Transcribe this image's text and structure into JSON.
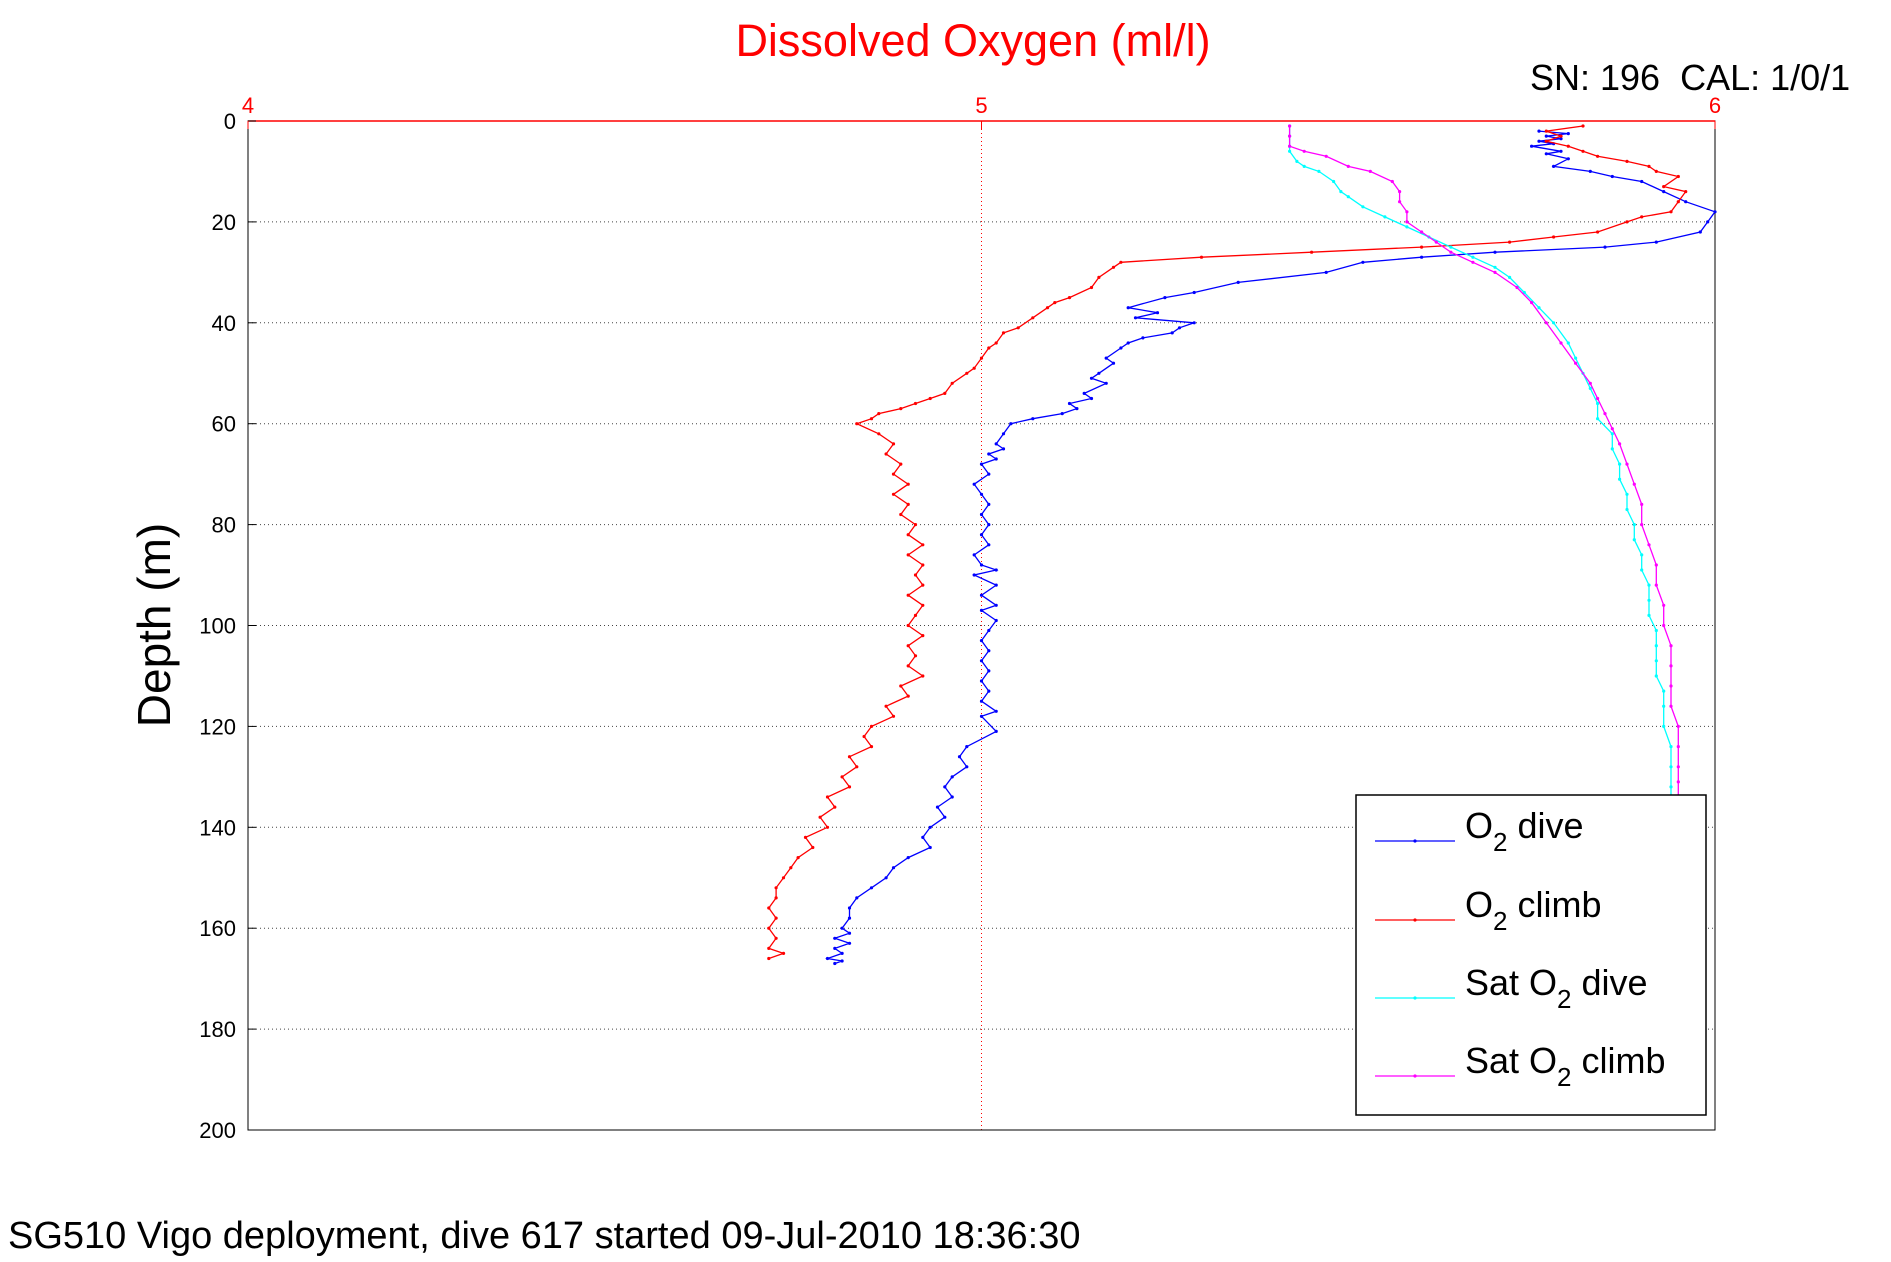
{
  "figure": {
    "serial_label": "SN: 196  CAL: 1/0/1",
    "caption": "SG510 Vigo deployment, dive 617 started 09-Jul-2010 18:36:30"
  },
  "chart_data": {
    "type": "line",
    "title": "Dissolved Oxygen (ml/l)",
    "title_color": "#ff0000",
    "xlabel": "",
    "ylabel": "Depth (m)",
    "xlim": [
      4,
      6
    ],
    "ylim": [
      0,
      200
    ],
    "y_reversed": true,
    "x_axis_position": "top",
    "x_ticks": [
      4,
      5,
      6
    ],
    "x_tick_color": "#ff0000",
    "y_ticks": [
      0,
      20,
      40,
      60,
      80,
      100,
      120,
      140,
      160,
      180,
      200
    ],
    "grid": true,
    "legend_position": "bottom-right",
    "series": [
      {
        "name": "O2 dive",
        "legend_base": "O",
        "legend_sub": "2",
        "legend_suffix": " dive",
        "color": "#0000ff",
        "points": [
          [
            5.76,
            2
          ],
          [
            5.8,
            2.5
          ],
          [
            5.77,
            3
          ],
          [
            5.79,
            3.5
          ],
          [
            5.76,
            4
          ],
          [
            5.78,
            4.5
          ],
          [
            5.75,
            5
          ],
          [
            5.79,
            6
          ],
          [
            5.77,
            6.5
          ],
          [
            5.8,
            7.5
          ],
          [
            5.78,
            9
          ],
          [
            5.83,
            10
          ],
          [
            5.86,
            11
          ],
          [
            5.9,
            12
          ],
          [
            5.93,
            14
          ],
          [
            5.96,
            16
          ],
          [
            6.0,
            18
          ],
          [
            5.99,
            20
          ],
          [
            5.98,
            22
          ],
          [
            5.92,
            24
          ],
          [
            5.85,
            25
          ],
          [
            5.7,
            26
          ],
          [
            5.6,
            27
          ],
          [
            5.52,
            28
          ],
          [
            5.47,
            30
          ],
          [
            5.35,
            32
          ],
          [
            5.29,
            34
          ],
          [
            5.25,
            35
          ],
          [
            5.2,
            37
          ],
          [
            5.24,
            38
          ],
          [
            5.21,
            39
          ],
          [
            5.29,
            40
          ],
          [
            5.27,
            41
          ],
          [
            5.26,
            42
          ],
          [
            5.22,
            43
          ],
          [
            5.2,
            44
          ],
          [
            5.19,
            45
          ],
          [
            5.17,
            47
          ],
          [
            5.18,
            48
          ],
          [
            5.16,
            50
          ],
          [
            5.15,
            51
          ],
          [
            5.17,
            52
          ],
          [
            5.14,
            54
          ],
          [
            5.15,
            55
          ],
          [
            5.12,
            56
          ],
          [
            5.13,
            57
          ],
          [
            5.11,
            58
          ],
          [
            5.07,
            59
          ],
          [
            5.04,
            60
          ],
          [
            5.03,
            62
          ],
          [
            5.02,
            64
          ],
          [
            5.03,
            65
          ],
          [
            5.01,
            66
          ],
          [
            5.02,
            67
          ],
          [
            5.0,
            68
          ],
          [
            5.01,
            70
          ],
          [
            4.99,
            72
          ],
          [
            5.0,
            74
          ],
          [
            5.01,
            76
          ],
          [
            5.0,
            78
          ],
          [
            5.01,
            80
          ],
          [
            5.0,
            82
          ],
          [
            5.01,
            84
          ],
          [
            4.99,
            86
          ],
          [
            5.0,
            88
          ],
          [
            5.02,
            89
          ],
          [
            4.99,
            90
          ],
          [
            5.02,
            92
          ],
          [
            5.0,
            94
          ],
          [
            5.02,
            96
          ],
          [
            5.0,
            97
          ],
          [
            5.02,
            99
          ],
          [
            5.01,
            101
          ],
          [
            5.0,
            103
          ],
          [
            5.01,
            105
          ],
          [
            5.0,
            107
          ],
          [
            5.01,
            109
          ],
          [
            5.0,
            111
          ],
          [
            5.01,
            113
          ],
          [
            5.0,
            115
          ],
          [
            5.02,
            117
          ],
          [
            5.0,
            118
          ],
          [
            5.02,
            121
          ],
          [
            4.98,
            124
          ],
          [
            4.97,
            126
          ],
          [
            4.98,
            128
          ],
          [
            4.96,
            130
          ],
          [
            4.95,
            132
          ],
          [
            4.96,
            134
          ],
          [
            4.94,
            136
          ],
          [
            4.95,
            138
          ],
          [
            4.93,
            140
          ],
          [
            4.92,
            142
          ],
          [
            4.93,
            144
          ],
          [
            4.9,
            146
          ],
          [
            4.88,
            148
          ],
          [
            4.87,
            150
          ],
          [
            4.85,
            152
          ],
          [
            4.83,
            154
          ],
          [
            4.82,
            156
          ],
          [
            4.82,
            158
          ],
          [
            4.81,
            160
          ],
          [
            4.82,
            161
          ],
          [
            4.8,
            162
          ],
          [
            4.82,
            163
          ],
          [
            4.8,
            164
          ],
          [
            4.81,
            165
          ],
          [
            4.79,
            166
          ],
          [
            4.81,
            166.5
          ],
          [
            4.8,
            167
          ]
        ]
      },
      {
        "name": "O2 climb",
        "legend_base": "O",
        "legend_sub": "2",
        "legend_suffix": " climb",
        "color": "#ff0000",
        "points": [
          [
            5.82,
            1
          ],
          [
            5.77,
            2
          ],
          [
            5.79,
            3
          ],
          [
            5.77,
            4
          ],
          [
            5.8,
            5
          ],
          [
            5.82,
            6
          ],
          [
            5.84,
            7
          ],
          [
            5.88,
            8
          ],
          [
            5.91,
            9
          ],
          [
            5.92,
            10
          ],
          [
            5.95,
            11
          ],
          [
            5.93,
            13
          ],
          [
            5.96,
            14
          ],
          [
            5.95,
            16
          ],
          [
            5.94,
            18
          ],
          [
            5.9,
            19
          ],
          [
            5.88,
            20
          ],
          [
            5.84,
            22
          ],
          [
            5.78,
            23
          ],
          [
            5.72,
            24
          ],
          [
            5.6,
            25
          ],
          [
            5.45,
            26
          ],
          [
            5.3,
            27
          ],
          [
            5.19,
            28
          ],
          [
            5.18,
            29
          ],
          [
            5.16,
            31
          ],
          [
            5.15,
            33
          ],
          [
            5.12,
            35
          ],
          [
            5.1,
            36
          ],
          [
            5.09,
            37
          ],
          [
            5.07,
            39
          ],
          [
            5.05,
            41
          ],
          [
            5.03,
            42
          ],
          [
            5.02,
            44
          ],
          [
            5.01,
            45
          ],
          [
            5.0,
            47
          ],
          [
            4.99,
            49
          ],
          [
            4.98,
            50
          ],
          [
            4.96,
            52
          ],
          [
            4.95,
            54
          ],
          [
            4.93,
            55
          ],
          [
            4.91,
            56
          ],
          [
            4.89,
            57
          ],
          [
            4.86,
            58
          ],
          [
            4.85,
            59
          ],
          [
            4.83,
            60
          ],
          [
            4.86,
            62
          ],
          [
            4.88,
            64
          ],
          [
            4.87,
            66
          ],
          [
            4.89,
            68
          ],
          [
            4.88,
            70
          ],
          [
            4.9,
            72
          ],
          [
            4.88,
            74
          ],
          [
            4.9,
            76
          ],
          [
            4.89,
            78
          ],
          [
            4.91,
            80
          ],
          [
            4.9,
            82
          ],
          [
            4.92,
            84
          ],
          [
            4.9,
            86
          ],
          [
            4.92,
            88
          ],
          [
            4.91,
            90
          ],
          [
            4.92,
            92
          ],
          [
            4.9,
            94
          ],
          [
            4.92,
            96
          ],
          [
            4.91,
            98
          ],
          [
            4.9,
            100
          ],
          [
            4.92,
            102
          ],
          [
            4.9,
            104
          ],
          [
            4.91,
            106
          ],
          [
            4.9,
            108
          ],
          [
            4.92,
            110
          ],
          [
            4.89,
            112
          ],
          [
            4.9,
            114
          ],
          [
            4.87,
            116
          ],
          [
            4.88,
            118
          ],
          [
            4.85,
            120
          ],
          [
            4.84,
            122
          ],
          [
            4.85,
            124
          ],
          [
            4.82,
            126
          ],
          [
            4.83,
            128
          ],
          [
            4.81,
            130
          ],
          [
            4.82,
            132
          ],
          [
            4.79,
            134
          ],
          [
            4.8,
            136
          ],
          [
            4.78,
            138
          ],
          [
            4.79,
            140
          ],
          [
            4.76,
            142
          ],
          [
            4.77,
            144
          ],
          [
            4.75,
            146
          ],
          [
            4.74,
            148
          ],
          [
            4.73,
            150
          ],
          [
            4.72,
            152
          ],
          [
            4.72,
            154
          ],
          [
            4.71,
            156
          ],
          [
            4.72,
            158
          ],
          [
            4.71,
            160
          ],
          [
            4.72,
            162
          ],
          [
            4.71,
            164
          ],
          [
            4.73,
            165
          ],
          [
            4.71,
            166
          ]
        ]
      },
      {
        "name": "Sat O2 dive",
        "legend_base": "Sat O",
        "legend_sub": "2",
        "legend_suffix": " dive",
        "color": "#00ffff",
        "points": [
          [
            5.42,
            1
          ],
          [
            5.42,
            3
          ],
          [
            5.42,
            5
          ],
          [
            5.42,
            6
          ],
          [
            5.43,
            8
          ],
          [
            5.44,
            9
          ],
          [
            5.46,
            10
          ],
          [
            5.48,
            12
          ],
          [
            5.49,
            14
          ],
          [
            5.5,
            15
          ],
          [
            5.52,
            17
          ],
          [
            5.55,
            19
          ],
          [
            5.58,
            21
          ],
          [
            5.61,
            23
          ],
          [
            5.64,
            25
          ],
          [
            5.67,
            27
          ],
          [
            5.7,
            29
          ],
          [
            5.72,
            31
          ],
          [
            5.74,
            34
          ],
          [
            5.76,
            37
          ],
          [
            5.78,
            40
          ],
          [
            5.8,
            44
          ],
          [
            5.81,
            47
          ],
          [
            5.82,
            50
          ],
          [
            5.83,
            53
          ],
          [
            5.84,
            56
          ],
          [
            5.84,
            59
          ],
          [
            5.86,
            62
          ],
          [
            5.86,
            65
          ],
          [
            5.87,
            68
          ],
          [
            5.87,
            71
          ],
          [
            5.88,
            74
          ],
          [
            5.88,
            77
          ],
          [
            5.89,
            80
          ],
          [
            5.89,
            83
          ],
          [
            5.9,
            86
          ],
          [
            5.9,
            89
          ],
          [
            5.91,
            92
          ],
          [
            5.91,
            95
          ],
          [
            5.91,
            98
          ],
          [
            5.92,
            101
          ],
          [
            5.92,
            104
          ],
          [
            5.92,
            107
          ],
          [
            5.92,
            110
          ],
          [
            5.93,
            113
          ],
          [
            5.93,
            116
          ],
          [
            5.93,
            120
          ],
          [
            5.94,
            124
          ],
          [
            5.94,
            128
          ],
          [
            5.94,
            132
          ],
          [
            5.94,
            134
          ]
        ]
      },
      {
        "name": "Sat O2 climb",
        "legend_base": "Sat O",
        "legend_sub": "2",
        "legend_suffix": " climb",
        "color": "#ff00ff",
        "points": [
          [
            5.42,
            1
          ],
          [
            5.42,
            3
          ],
          [
            5.42,
            5
          ],
          [
            5.44,
            6
          ],
          [
            5.47,
            7
          ],
          [
            5.5,
            9
          ],
          [
            5.53,
            10
          ],
          [
            5.56,
            12
          ],
          [
            5.57,
            14
          ],
          [
            5.57,
            16
          ],
          [
            5.58,
            18
          ],
          [
            5.58,
            20
          ],
          [
            5.6,
            22
          ],
          [
            5.62,
            24
          ],
          [
            5.64,
            26
          ],
          [
            5.67,
            28
          ],
          [
            5.7,
            30
          ],
          [
            5.73,
            33
          ],
          [
            5.75,
            36
          ],
          [
            5.77,
            40
          ],
          [
            5.79,
            44
          ],
          [
            5.81,
            48
          ],
          [
            5.83,
            52
          ],
          [
            5.84,
            55
          ],
          [
            5.85,
            58
          ],
          [
            5.86,
            61
          ],
          [
            5.87,
            64
          ],
          [
            5.88,
            68
          ],
          [
            5.89,
            72
          ],
          [
            5.9,
            76
          ],
          [
            5.9,
            80
          ],
          [
            5.91,
            84
          ],
          [
            5.92,
            88
          ],
          [
            5.92,
            92
          ],
          [
            5.93,
            96
          ],
          [
            5.93,
            100
          ],
          [
            5.94,
            104
          ],
          [
            5.94,
            108
          ],
          [
            5.94,
            112
          ],
          [
            5.94,
            116
          ],
          [
            5.95,
            120
          ],
          [
            5.95,
            124
          ],
          [
            5.95,
            128
          ],
          [
            5.95,
            131
          ],
          [
            5.95,
            134
          ]
        ]
      }
    ]
  }
}
